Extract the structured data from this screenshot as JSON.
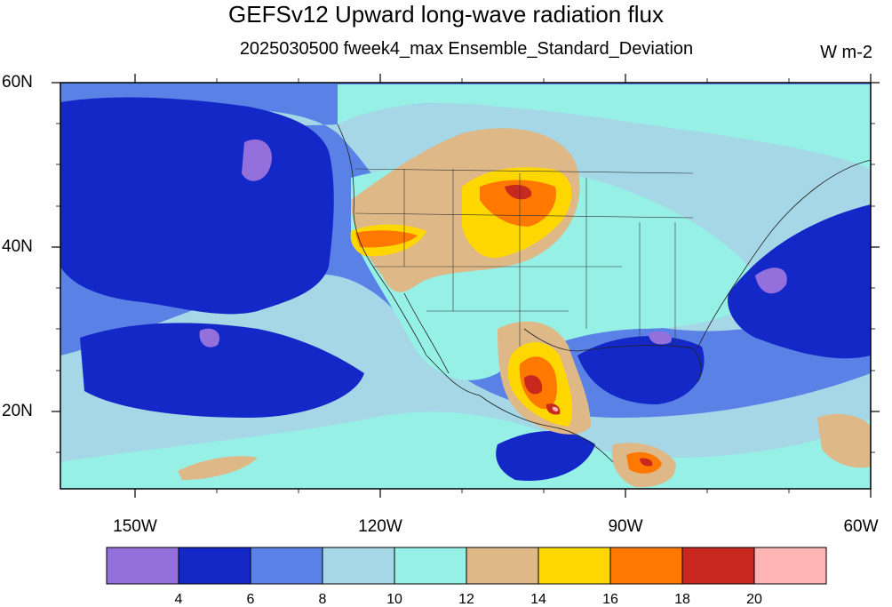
{
  "title": "GEFSv12 Upward long-wave radiation flux",
  "subtitle": "2025030500 fweek4_max Ensemble_Standard_Deviation",
  "units": "W m-2",
  "axes": {
    "lat_labels": [
      "60N",
      "40N",
      "20N"
    ],
    "lon_labels": [
      "150W",
      "120W",
      "90W",
      "60W"
    ],
    "lat_range": [
      10,
      60
    ],
    "lon_range": [
      -159,
      -60
    ]
  },
  "colorbar": {
    "colors": [
      "#9370db",
      "#1428c8",
      "#5a82e6",
      "#a5d7e6",
      "#96f0e6",
      "#deb887",
      "#ffd700",
      "#ff7800",
      "#c8281e",
      "#ffb4b4"
    ],
    "labels": [
      "4",
      "6",
      "8",
      "10",
      "12",
      "14",
      "16",
      "18",
      "20"
    ]
  }
}
